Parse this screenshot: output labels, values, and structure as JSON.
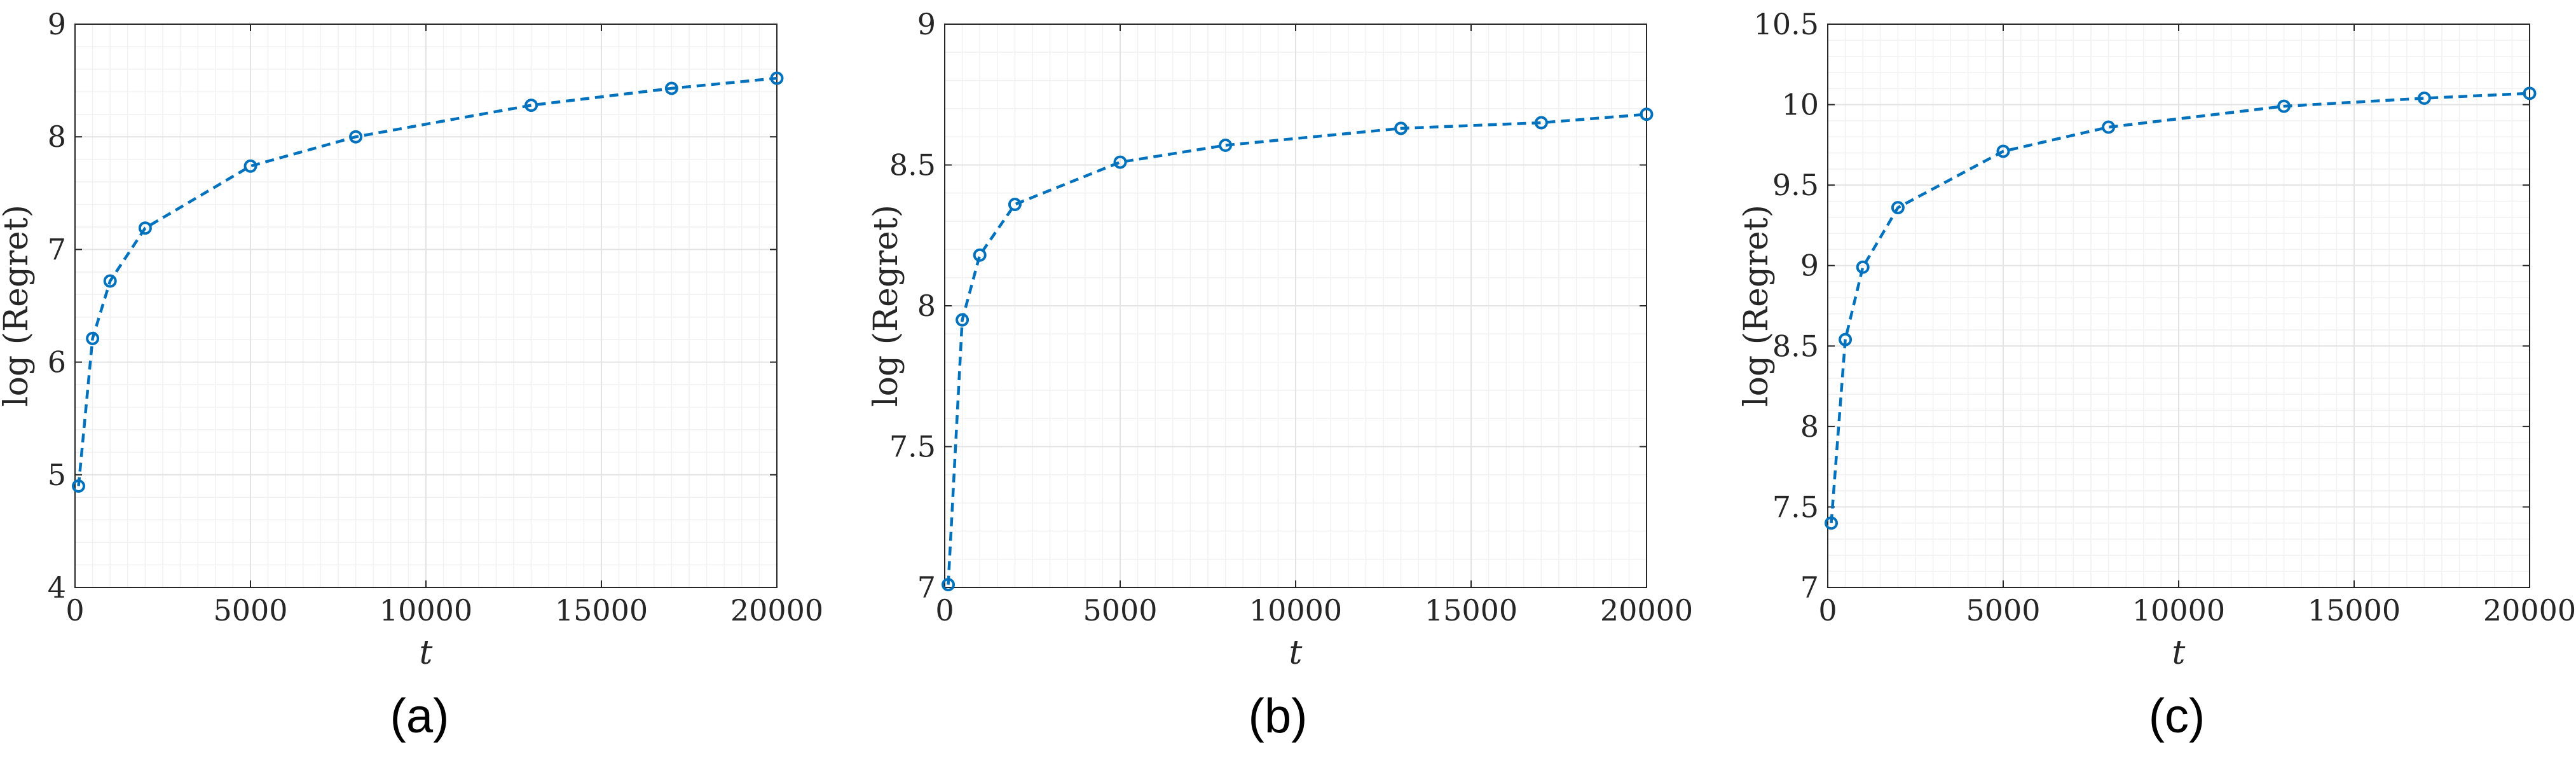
{
  "chart_data": [
    {
      "type": "line",
      "caption": "(a)",
      "xlabel": "t",
      "ylabel": "log (Regret)",
      "xlim": [
        0,
        20000
      ],
      "ylim": [
        4,
        9
      ],
      "xticks": [
        0,
        5000,
        10000,
        15000,
        20000
      ],
      "xtick_labels": [
        "0",
        "5000",
        "10000",
        "15000",
        "20000"
      ],
      "yticks": [
        4,
        5,
        6,
        7,
        8,
        9
      ],
      "ytick_labels": [
        "4",
        "5",
        "6",
        "7",
        "8",
        "9"
      ],
      "grid": true,
      "series": [
        {
          "x": [
            100,
            500,
            1000,
            2000,
            5000,
            8000,
            13000,
            17000,
            20000
          ],
          "y": [
            4.9,
            6.21,
            6.72,
            7.19,
            7.74,
            8.0,
            8.28,
            8.43,
            8.52
          ],
          "color": "#0072bd",
          "style": "dashed",
          "marker": "circle"
        }
      ]
    },
    {
      "type": "line",
      "caption": "(b)",
      "xlabel": "t",
      "ylabel": "log (Regret)",
      "xlim": [
        0,
        20000
      ],
      "ylim": [
        7,
        9
      ],
      "xticks": [
        0,
        5000,
        10000,
        15000,
        20000
      ],
      "xtick_labels": [
        "0",
        "5000",
        "10000",
        "15000",
        "20000"
      ],
      "yticks": [
        7,
        7.5,
        8,
        8.5,
        9
      ],
      "ytick_labels": [
        "7",
        "7.5",
        "8",
        "8.5",
        "9"
      ],
      "grid": true,
      "series": [
        {
          "x": [
            100,
            500,
            1000,
            2000,
            5000,
            8000,
            13000,
            17000,
            20000
          ],
          "y": [
            7.01,
            7.95,
            8.18,
            8.36,
            8.51,
            8.57,
            8.63,
            8.65,
            8.68
          ],
          "color": "#0072bd",
          "style": "dashed",
          "marker": "circle"
        }
      ]
    },
    {
      "type": "line",
      "caption": "(c)",
      "xlabel": "t",
      "ylabel": "log (Regret)",
      "xlim": [
        0,
        20000
      ],
      "ylim": [
        7,
        10.5
      ],
      "xticks": [
        0,
        5000,
        10000,
        15000,
        20000
      ],
      "xtick_labels": [
        "0",
        "5000",
        "10000",
        "15000",
        "20000"
      ],
      "yticks": [
        7,
        7.5,
        8,
        8.5,
        9,
        9.5,
        10,
        10.5
      ],
      "ytick_labels": [
        "7",
        "7.5",
        "8",
        "8.5",
        "9",
        "9.5",
        "10",
        "10.5"
      ],
      "grid": true,
      "series": [
        {
          "x": [
            100,
            500,
            1000,
            2000,
            5000,
            8000,
            13000,
            17000,
            20000
          ],
          "y": [
            7.4,
            8.54,
            8.99,
            9.36,
            9.71,
            9.86,
            9.99,
            10.04,
            10.07
          ],
          "color": "#0072bd",
          "style": "dashed",
          "marker": "circle"
        }
      ]
    }
  ]
}
